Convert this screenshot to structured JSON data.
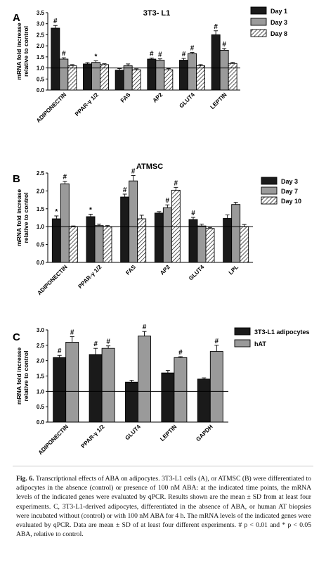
{
  "figure": {
    "caption_label": "Fig. 6.",
    "caption_text": " Transcriptional effects of ABA on adipocytes. 3T3-L1 cells (A), or ATMSC (B) were differentiated to adipocytes in the absence (control) or presence of 100 nM ABA: at the indicated time points, the mRNA levels of the indicated genes were evaluated by qPCR. Results shown are the mean ± SD from at least four experiments. C, 3T3-L1-derived adipocytes, differentiated in the absence of ABA, or human AT biopsies were incubated without (control) or with 100 nM ABA for 4 h. The mRNA levels of the indicated genes were evaluated by qPCR. Data are mean ± SD of at least four different experiments. # p < 0.01 and * p < 0.05 ABA, relative to control."
  },
  "chart_data": [
    {
      "type": "bar",
      "panel": "A",
      "title": "3T3- L1",
      "ylabel": "mRNA fold increase relative to control",
      "ylim": [
        0,
        3.5
      ],
      "yticks": [
        "0.0",
        "0.5",
        "1.0",
        "1.5",
        "2.0",
        "2.5",
        "3.0",
        "3.5"
      ],
      "reference_line": 1.0,
      "legend_position": "top-right",
      "categories": [
        "ADIPONECTIN",
        "PPAR-γ 1/2",
        "FAS",
        "AP2",
        "GLUT4",
        "LEPTIN"
      ],
      "series": [
        {
          "name": "Day 1",
          "style": "black",
          "values": [
            2.8,
            1.18,
            0.9,
            1.4,
            1.35,
            2.5
          ],
          "errors": [
            0.12,
            0.06,
            0.07,
            0.05,
            0.08,
            0.18
          ],
          "marks": [
            "#",
            "",
            "",
            "#",
            "#",
            "#"
          ]
        },
        {
          "name": "Day 3",
          "style": "gray",
          "values": [
            1.4,
            1.25,
            1.1,
            1.35,
            1.65,
            1.8
          ],
          "errors": [
            0.06,
            0.07,
            0.08,
            0.06,
            0.05,
            0.08
          ],
          "marks": [
            "#",
            "*",
            "",
            "#",
            "#",
            "#"
          ]
        },
        {
          "name": "Day 8",
          "style": "hatch",
          "values": [
            1.1,
            1.15,
            0.92,
            0.92,
            1.1,
            1.2
          ],
          "errors": [
            0.05,
            0.04,
            0.04,
            0.05,
            0.05,
            0.05
          ],
          "marks": [
            "",
            "",
            "",
            "",
            "",
            ""
          ]
        }
      ]
    },
    {
      "type": "bar",
      "panel": "B",
      "title": "ATMSC",
      "ylabel": "mRNA fold increase relative to control",
      "ylim": [
        0,
        2.5
      ],
      "yticks": [
        "0.0",
        "0.5",
        "1.0",
        "1.5",
        "2.0",
        "2.5"
      ],
      "reference_line": 1.0,
      "legend_position": "top-right",
      "categories": [
        "ADIPONECTIN",
        "PPAR-γ 1/2",
        "FAS",
        "AP2",
        "GLUT4",
        "LPL"
      ],
      "series": [
        {
          "name": "Day 3",
          "style": "black",
          "values": [
            1.22,
            1.28,
            1.83,
            1.38,
            1.2,
            1.23
          ],
          "errors": [
            0.08,
            0.07,
            0.08,
            0.04,
            0.06,
            0.1
          ],
          "marks": [
            "*",
            "*",
            "#",
            "",
            "#",
            ""
          ]
        },
        {
          "name": "Day 7",
          "style": "gray",
          "values": [
            2.2,
            1.03,
            2.28,
            1.53,
            1.02,
            1.62
          ],
          "errors": [
            0.07,
            0.04,
            0.15,
            0.08,
            0.05,
            0.06
          ],
          "marks": [
            "#",
            "",
            "#",
            "#",
            "",
            ""
          ]
        },
        {
          "name": "Day 10",
          "style": "hatch",
          "values": [
            1.0,
            1.0,
            1.22,
            2.02,
            0.95,
            1.0
          ],
          "errors": [
            0.02,
            0.03,
            0.1,
            0.08,
            0.03,
            0.06
          ],
          "marks": [
            "",
            "",
            "",
            "#",
            "",
            ""
          ]
        }
      ]
    },
    {
      "type": "bar",
      "panel": "C",
      "title": "",
      "ylabel": "mRNA fold increase relative to control",
      "ylim": [
        0,
        3.0
      ],
      "yticks": [
        "0.0",
        "0.5",
        "1.0",
        "1.5",
        "2.0",
        "2.5",
        "3.0"
      ],
      "reference_line": 1.0,
      "legend_position": "top-right",
      "categories": [
        "ADIPONECTIN",
        "PPAR-γ 1/2",
        "GLUT4",
        "LEPTIN",
        "GAPDH"
      ],
      "series": [
        {
          "name": "3T3-L1 adipocytes",
          "style": "black",
          "values": [
            2.1,
            2.2,
            1.3,
            1.6,
            1.4
          ],
          "errors": [
            0.07,
            0.2,
            0.06,
            0.08,
            0.04
          ],
          "marks": [
            "#",
            "#",
            "",
            "",
            ""
          ]
        },
        {
          "name": "hAT",
          "style": "gray",
          "values": [
            2.6,
            2.4,
            2.8,
            2.1,
            2.3
          ],
          "errors": [
            0.18,
            0.08,
            0.15,
            0.03,
            0.2
          ],
          "marks": [
            "#",
            "#",
            "#",
            "#",
            "#"
          ]
        }
      ]
    }
  ]
}
